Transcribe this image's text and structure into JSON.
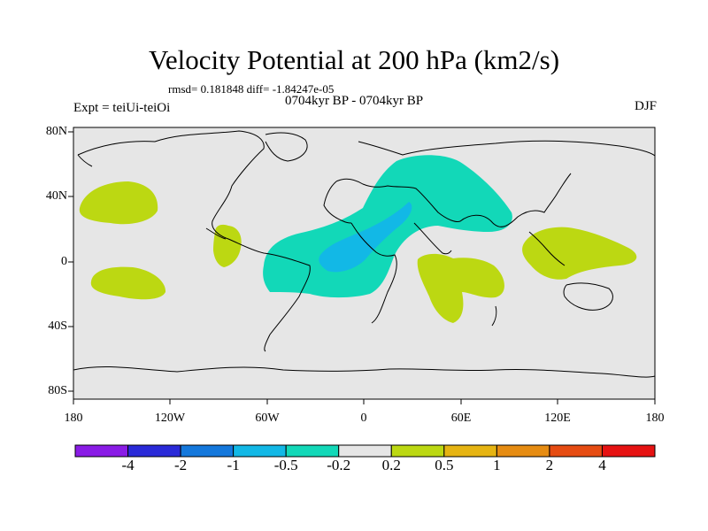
{
  "header": {
    "title": "Velocity Potential at 200 hPa (km2/s)",
    "stats": "rmsd= 0.181848 diff= -1.84247e-05",
    "subtitle": "0704kyr BP - 0704kyr BP",
    "expt": "Expt = teiUi-teiOi",
    "season": "DJF"
  },
  "axes": {
    "lat_labels": [
      "80N",
      "40N",
      "0",
      "40S",
      "80S"
    ],
    "lon_labels": [
      "180",
      "120W",
      "60W",
      "0",
      "60E",
      "120E",
      "180"
    ]
  },
  "colorbar": {
    "labels": [
      "-4",
      "-2",
      "-1",
      "-0.5",
      "-0.2",
      "0.2",
      "0.5",
      "1",
      "2",
      "4"
    ],
    "colors": [
      "#8a1ce6",
      "#2a2ad8",
      "#1478dc",
      "#12b8e6",
      "#12d8b8",
      "#e6e6e6",
      "#bcd812",
      "#e6b412",
      "#e68c12",
      "#e64c12",
      "#e61212"
    ]
  },
  "map": {
    "background": "#e6e6e6",
    "positive_color": "#bcd812",
    "negative_color": "#12d8b8",
    "strong_negative_color": "#12b8e6"
  }
}
